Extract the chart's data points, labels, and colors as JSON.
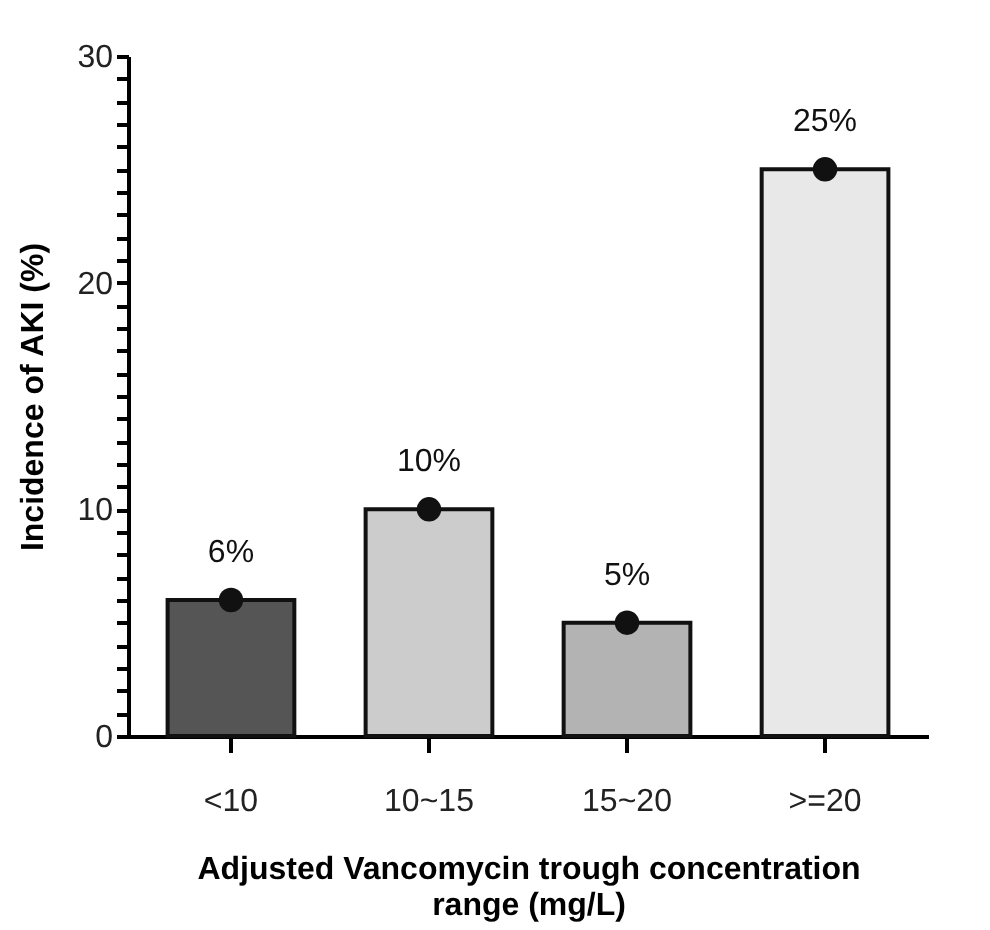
{
  "chart_data": {
    "type": "bar",
    "xlabel": "Adjusted Vancomycin trough concentration range (mg/L)",
    "ylabel": "Incidence of AKI (%)",
    "categories": [
      "<10",
      "10~15",
      "15~20",
      ">=20"
    ],
    "series": [
      {
        "type": "bar",
        "colors": [
          "#555555",
          "#cccccc",
          "#b3b3b3",
          "#e8e8e8"
        ],
        "values": [
          6,
          10,
          5,
          25
        ],
        "value_labels": [
          "6%",
          "10%",
          "5%",
          "25%"
        ]
      },
      {
        "type": "scatter",
        "color": "#111111",
        "x": [
          "<10",
          "10~15",
          "15~20",
          ">=20"
        ],
        "values": [
          6,
          10,
          5,
          25
        ]
      }
    ],
    "marker": "circle",
    "ylim": [
      0,
      30
    ],
    "yticks": [
      0,
      {
        "value": 1,
        "label": null
      },
      {
        "value": 2,
        "label": null
      },
      {
        "value": 3,
        "label": null
      },
      {
        "value": 4,
        "label": null
      },
      {
        "value": 5,
        "label": null
      },
      {
        "value": 6,
        "label": null
      },
      {
        "value": 7,
        "label": null
      },
      {
        "value": 8,
        "label": null
      },
      {
        "value": 9,
        "label": null
      },
      10,
      {
        "value": 11,
        "label": null
      },
      {
        "value": 12,
        "label": null
      },
      {
        "value": 13,
        "label": null
      },
      {
        "value": 14,
        "label": null
      },
      {
        "value": 15,
        "label": null
      },
      {
        "value": 16,
        "label": null
      },
      {
        "value": 17,
        "label": null
      },
      {
        "value": 18,
        "label": null
      },
      {
        "value": 19,
        "label": null
      },
      20,
      {
        "value": 21,
        "label": null
      },
      {
        "value": 22,
        "label": null
      },
      {
        "value": 23,
        "label": null
      },
      {
        "value": 24,
        "label": null
      },
      {
        "value": 25,
        "label": null
      },
      {
        "value": 26,
        "label": null
      },
      {
        "value": 27,
        "label": null
      },
      {
        "value": 28,
        "label": null
      },
      {
        "value": 29,
        "label": null
      },
      30
    ],
    "grid": false
  }
}
